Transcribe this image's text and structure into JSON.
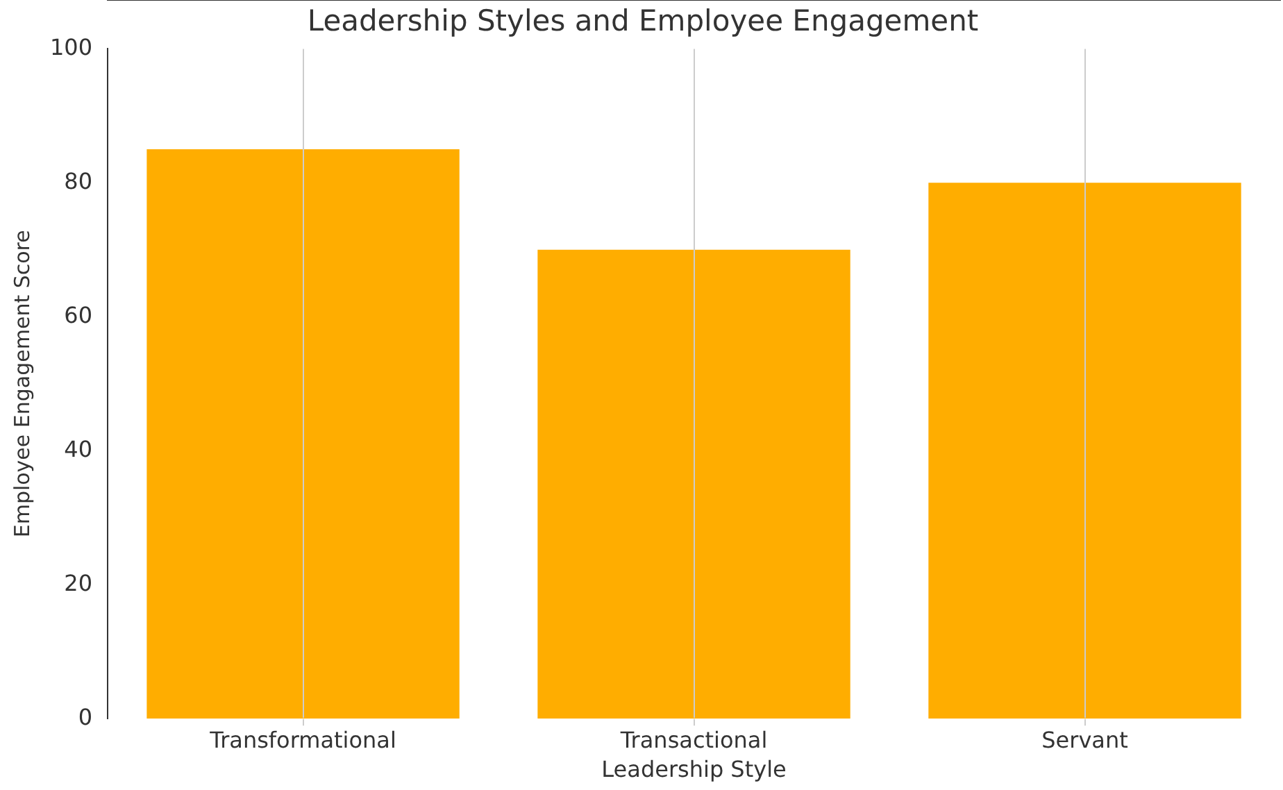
{
  "chart_data": {
    "type": "bar",
    "title": "Leadership Styles and Employee Engagement",
    "xlabel": "Leadership Style",
    "ylabel": "Employee Engagement Score",
    "categories": [
      "Transformational",
      "Transactional",
      "Servant"
    ],
    "values": [
      85,
      70,
      80
    ],
    "color": "#ffad00",
    "ylim": [
      0,
      100
    ],
    "yticks": [
      0,
      20,
      40,
      60,
      80,
      100
    ],
    "grid": "x"
  }
}
